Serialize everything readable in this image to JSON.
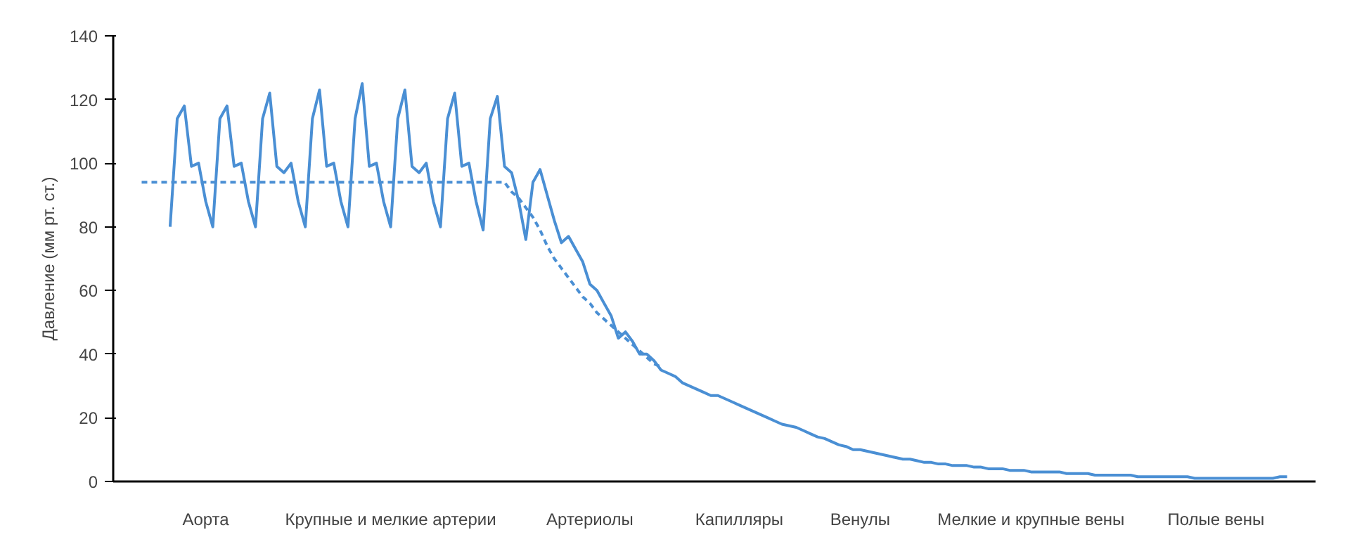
{
  "chart_data": {
    "type": "line",
    "ylabel": "Давление (мм рт. ст.)",
    "ylim": [
      0,
      140
    ],
    "yticks": [
      0,
      20,
      40,
      60,
      80,
      100,
      120,
      140
    ],
    "grid": false,
    "marker": "none",
    "categories": [
      null,
      null,
      null,
      null,
      null,
      null,
      null,
      null,
      null,
      null,
      null,
      null,
      null,
      "Аорта",
      null,
      null,
      null,
      null,
      null,
      null,
      null,
      null,
      null,
      null,
      null,
      null,
      null,
      null,
      null,
      null,
      null,
      null,
      null,
      null,
      null,
      null,
      null,
      null,
      null,
      "Крупные и мелкие артерии",
      null,
      null,
      null,
      null,
      null,
      null,
      null,
      null,
      null,
      null,
      null,
      null,
      null,
      null,
      null,
      null,
      null,
      null,
      null,
      null,
      null,
      null,
      null,
      null,
      null,
      null,
      null,
      "Артериолы",
      null,
      null,
      null,
      null,
      null,
      null,
      null,
      null,
      null,
      null,
      null,
      null,
      null,
      null,
      null,
      null,
      null,
      null,
      null,
      null,
      "Капилляры",
      null,
      null,
      null,
      null,
      null,
      null,
      null,
      null,
      null,
      null,
      null,
      null,
      null,
      null,
      null,
      null,
      "Венулы",
      null,
      null,
      null,
      null,
      null,
      null,
      null,
      null,
      null,
      null,
      null,
      null,
      null,
      null,
      null,
      null,
      null,
      null,
      null,
      null,
      null,
      null,
      null,
      "Мелкие и крупные вены",
      null,
      null,
      null,
      null,
      null,
      null,
      null,
      null,
      null,
      null,
      null,
      null,
      null,
      null,
      null,
      null,
      null,
      null,
      null,
      null,
      null,
      null,
      null,
      null,
      null,
      "Полые вены",
      null,
      null,
      null,
      null,
      null,
      null,
      null,
      null,
      null,
      null,
      null,
      null,
      null
    ],
    "series": [
      {
        "color": "#4a8fd4",
        "line_style": "solid",
        "values": [
          null,
          null,
          null,
          null,
          null,
          null,
          null,
          null,
          80,
          114,
          118,
          99,
          100,
          88,
          80,
          114,
          118,
          99,
          100,
          88,
          80,
          114,
          122,
          99,
          97,
          100,
          88,
          80,
          114,
          123,
          99,
          100,
          88,
          80,
          114,
          125,
          99,
          100,
          88,
          80,
          114,
          123,
          99,
          97,
          100,
          88,
          80,
          114,
          122,
          99,
          100,
          88,
          79,
          114,
          121,
          99,
          97,
          88,
          76,
          94,
          98,
          90,
          82,
          75,
          77,
          73,
          69,
          62,
          60,
          56,
          52,
          45,
          47,
          44,
          40,
          40,
          38,
          35,
          34,
          33,
          31,
          30,
          29,
          28,
          27,
          27,
          26,
          25,
          24,
          23,
          22,
          21,
          20,
          19,
          18,
          17.5,
          17,
          16,
          15,
          14,
          13.5,
          12.5,
          11.5,
          11,
          10,
          10,
          9.5,
          9,
          8.5,
          8,
          7.5,
          7,
          7,
          6.5,
          6,
          6,
          5.5,
          5.5,
          5,
          5,
          5,
          4.5,
          4.5,
          4,
          4,
          4,
          3.5,
          3.5,
          3.5,
          3,
          3,
          3,
          3,
          3,
          2.5,
          2.5,
          2.5,
          2.5,
          2,
          2,
          2,
          2,
          2,
          2,
          1.5,
          1.5,
          1.5,
          1.5,
          1.5,
          1.5,
          1.5,
          1.5,
          1,
          1,
          1,
          1,
          1,
          1,
          1,
          1,
          1,
          1,
          1,
          1,
          1.5,
          1.5,
          null,
          null,
          null
        ]
      },
      {
        "color": "#4a8fd4",
        "line_style": "dashed",
        "values": [
          null,
          null,
          null,
          null,
          94,
          94,
          94,
          94,
          94,
          94,
          94,
          94,
          94,
          94,
          94,
          94,
          94,
          94,
          94,
          94,
          94,
          94,
          94,
          94,
          94,
          94,
          94,
          94,
          94,
          94,
          94,
          94,
          94,
          94,
          94,
          94,
          94,
          94,
          94,
          94,
          94,
          94,
          94,
          94,
          94,
          94,
          94,
          94,
          94,
          94,
          94,
          94,
          94,
          94,
          94,
          94,
          91,
          89,
          86,
          83,
          79,
          74,
          70,
          67,
          64,
          61,
          58,
          56,
          53,
          51,
          49,
          47,
          45,
          43,
          41,
          39,
          37,
          36,
          null,
          null,
          null,
          null,
          null,
          null,
          null,
          null,
          null,
          null,
          null,
          null,
          null,
          null,
          null,
          null,
          null,
          null,
          null,
          null,
          null,
          null,
          null,
          null,
          null,
          null,
          null,
          null,
          null,
          null,
          null,
          null,
          null,
          null,
          null,
          null,
          null,
          null,
          null,
          null,
          null,
          null,
          null,
          null,
          null,
          null,
          null,
          null,
          null,
          null,
          null,
          null,
          null,
          null,
          null,
          null,
          null,
          null,
          null,
          null,
          null,
          null,
          null,
          null,
          null,
          null,
          null,
          null,
          null,
          null,
          null,
          null,
          null,
          null,
          null,
          null,
          null,
          null,
          null,
          null,
          null,
          null,
          null,
          null,
          null,
          null,
          null,
          null,
          null,
          null,
          null
        ]
      }
    ]
  }
}
